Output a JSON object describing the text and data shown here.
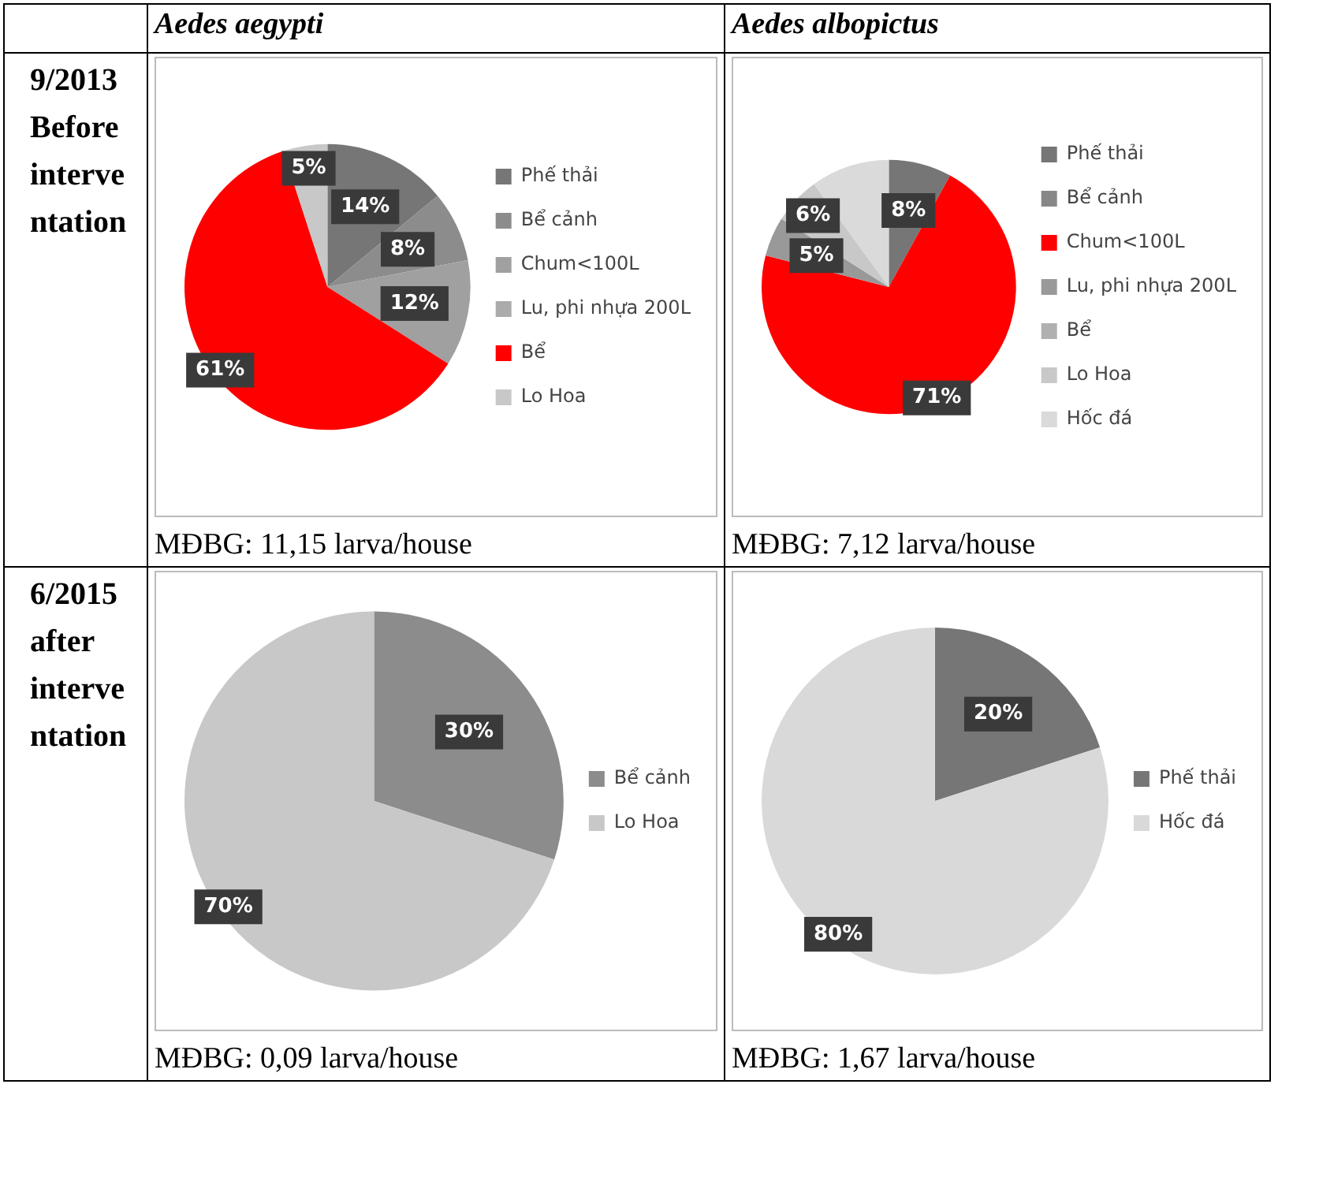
{
  "chart_data": [
    {
      "type": "pie",
      "title": "Aedes aegypti",
      "subtitle": "9/2013 Before interventation",
      "categories": [
        "Phế thải",
        "Bể cảnh",
        "Chum<100L",
        "Lu, phi nhựa 200L",
        "Bể",
        "Lo Hoa"
      ],
      "values": [
        14,
        8,
        12,
        0,
        61,
        5
      ],
      "colors": [
        "#767676",
        "#8c8c8c",
        "#a0a0a0",
        "#ababab",
        "#ff0000",
        "#c8c8c8"
      ],
      "value_labels": [
        "14%",
        "8%",
        "12%",
        null,
        "61%",
        "5%"
      ],
      "legend": "right",
      "annotations": [
        "MĐBG: 11,15 larva/house"
      ]
    },
    {
      "type": "pie",
      "title": "Aedes albopictus",
      "categories": [
        "Phế thải",
        "Bể cảnh",
        "Chum<100L",
        "Lu, phi nhựa 200L",
        "Bể",
        "Lo Hoa",
        "Hốc đá"
      ],
      "values": [
        8,
        0,
        71,
        5,
        0,
        6,
        10
      ],
      "colors": [
        "#767676",
        "#878787",
        "#ff0000",
        "#999999",
        "#b0b0b0",
        "#c8c8c8",
        "#dadada"
      ],
      "value_labels": [
        "8%",
        null,
        "71%",
        "5%",
        null,
        "6%",
        null
      ],
      "legend": "right",
      "annotations": [
        "MĐBG: 7,12 larva/house"
      ]
    },
    {
      "type": "pie",
      "subtitle": "6/2015 after interventation",
      "categories": [
        "Bể cảnh",
        "Lo Hoa"
      ],
      "values": [
        30,
        70
      ],
      "colors": [
        "#8c8c8c",
        "#c8c8c8"
      ],
      "value_labels": [
        "30%",
        "70%"
      ],
      "legend": "right",
      "annotations": [
        "MĐBG: 0,09 larva/house"
      ]
    },
    {
      "type": "pie",
      "categories": [
        "Phế thải",
        "Hốc đá"
      ],
      "values": [
        20,
        80
      ],
      "colors": [
        "#767676",
        "#d9d9d9"
      ],
      "value_labels": [
        "20%",
        "80%"
      ],
      "legend": "right",
      "annotations": [
        "MĐBG: 1,67 larva/house"
      ]
    }
  ]
}
